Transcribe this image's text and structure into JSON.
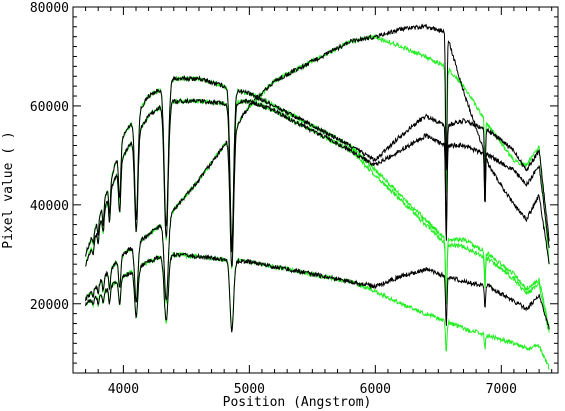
{
  "chart_data": {
    "type": "line",
    "title": "",
    "xlabel": "Position (Angstrom)",
    "ylabel": "Pixel value ( )",
    "xlim": [
      3600,
      7450
    ],
    "ylim": [
      6000,
      80000
    ],
    "x_ticks": [
      4000,
      5000,
      6000,
      7000
    ],
    "y_ticks": [
      20000,
      40000,
      60000,
      80000
    ],
    "x_tick_labels": [
      "4000",
      "5000",
      "6000",
      "7000"
    ],
    "y_tick_labels": [
      "20000",
      "40000",
      "60000",
      "80000"
    ],
    "grid": false,
    "legend": "none",
    "colors": {
      "black": "#000000",
      "green": "#22ee22"
    },
    "absorption_lines": [
      {
        "x": 3760,
        "depth": 0.06,
        "width": 8
      },
      {
        "x": 3800,
        "depth": 0.08,
        "width": 8
      },
      {
        "x": 3840,
        "depth": 0.1,
        "width": 9
      },
      {
        "x": 3890,
        "depth": 0.14,
        "width": 10
      },
      {
        "x": 3970,
        "depth": 0.2,
        "width": 12
      },
      {
        "x": 4102,
        "depth": 0.36,
        "width": 18
      },
      {
        "x": 4340,
        "depth": 0.45,
        "width": 22
      },
      {
        "x": 4861,
        "depth": 0.5,
        "width": 20
      },
      {
        "x": 6563,
        "depth": 0.38,
        "width": 8
      },
      {
        "x": 6870,
        "depth": 0.22,
        "width": 6
      }
    ],
    "series": [
      {
        "color": "black",
        "x": [
          3700,
          3800,
          3900,
          4000,
          4100,
          4200,
          4300,
          4400,
          4600,
          4800,
          5000,
          5200,
          5500,
          5800,
          6000,
          6200,
          6400,
          6560,
          6700,
          6900,
          7100,
          7200,
          7300,
          7380
        ],
        "y": [
          30000,
          37000,
          45000,
          54000,
          58000,
          62000,
          63500,
          65500,
          65500,
          64000,
          62500,
          60000,
          56000,
          52000,
          49000,
          54000,
          58000,
          56000,
          57000,
          55000,
          51000,
          47000,
          51000,
          33000
        ]
      },
      {
        "color": "black",
        "x": [
          3700,
          3800,
          3900,
          4000,
          4100,
          4200,
          4300,
          4400,
          4600,
          4800,
          5000,
          5200,
          5500,
          5800,
          6000,
          6200,
          6400,
          6560,
          6700,
          6900,
          7100,
          7200,
          7300,
          7380
        ],
        "y": [
          28000,
          35000,
          43000,
          50000,
          54000,
          58000,
          60000,
          61000,
          61000,
          60500,
          61000,
          59000,
          55000,
          51000,
          48000,
          51000,
          54000,
          52000,
          52000,
          50000,
          47000,
          44000,
          48000,
          31000
        ]
      },
      {
        "color": "black",
        "x": [
          3700,
          3800,
          3900,
          4000,
          4100,
          4200,
          4300,
          4400,
          4600,
          4800,
          5000,
          5200,
          5500,
          5800,
          6000,
          6200,
          6400,
          6560,
          6700,
          6900,
          7100,
          7200,
          7300,
          7380
        ],
        "y": [
          21000,
          24000,
          27000,
          30000,
          32000,
          34000,
          36000,
          39000,
          45000,
          52000,
          60000,
          65000,
          69000,
          73000,
          74000,
          75500,
          76000,
          75000,
          63000,
          48000,
          40000,
          37000,
          42000,
          28000
        ]
      },
      {
        "color": "black",
        "x": [
          3700,
          3800,
          3900,
          4000,
          4100,
          4200,
          4300,
          4400,
          4600,
          4800,
          5000,
          5200,
          5500,
          5800,
          6000,
          6200,
          6400,
          6560,
          6700,
          6900,
          7100,
          7200,
          7300,
          7380
        ],
        "y": [
          20000,
          21500,
          23500,
          25500,
          27000,
          28500,
          29500,
          30000,
          29500,
          29000,
          28500,
          27500,
          26000,
          24500,
          23500,
          25500,
          27000,
          25500,
          24500,
          23500,
          20500,
          19000,
          21500,
          15000
        ]
      },
      {
        "color": "green",
        "x": [
          3700,
          3800,
          3900,
          4000,
          4100,
          4200,
          4300,
          4400,
          4600,
          4800,
          5000,
          5200,
          5500,
          5800,
          6000,
          6200,
          6400,
          6560,
          6700,
          6900,
          7100,
          7200,
          7300,
          7380
        ],
        "y": [
          30000,
          37000,
          45000,
          54000,
          58000,
          62000,
          63500,
          65500,
          65500,
          64000,
          62500,
          60000,
          56000,
          52000,
          47000,
          42000,
          37000,
          33000,
          33000,
          30000,
          26000,
          23000,
          25000,
          15000
        ]
      },
      {
        "color": "green",
        "x": [
          3700,
          3800,
          3900,
          4000,
          4100,
          4200,
          4300,
          4400,
          4600,
          4800,
          5000,
          5200,
          5500,
          5800,
          6000,
          6200,
          6400,
          6560,
          6700,
          6900,
          7100,
          7200,
          7300,
          7380
        ],
        "y": [
          28000,
          35000,
          43000,
          50000,
          54000,
          58000,
          60000,
          61000,
          61000,
          60500,
          61000,
          59000,
          55000,
          51000,
          46000,
          41000,
          36000,
          32000,
          31500,
          29000,
          25000,
          22000,
          24000,
          14000
        ]
      },
      {
        "color": "green",
        "x": [
          3700,
          3800,
          3900,
          4000,
          4100,
          4200,
          4300,
          4400,
          4600,
          4800,
          5000,
          5200,
          5500,
          5800,
          6000,
          6200,
          6400,
          6560,
          6700,
          6900,
          7100,
          7200,
          7300,
          7380
        ],
        "y": [
          21000,
          24000,
          27000,
          30000,
          32000,
          34000,
          36000,
          39000,
          45000,
          52000,
          60000,
          65000,
          69000,
          73000,
          74000,
          72000,
          70000,
          68000,
          64000,
          56000,
          49000,
          48000,
          52000,
          28000
        ]
      },
      {
        "color": "green",
        "x": [
          3700,
          3800,
          3900,
          4000,
          4100,
          4200,
          4300,
          4400,
          4600,
          4800,
          5000,
          5200,
          5500,
          5800,
          6000,
          6200,
          6400,
          6560,
          6700,
          6900,
          7100,
          7200,
          7300,
          7380
        ],
        "y": [
          20000,
          21500,
          23500,
          25500,
          27000,
          28500,
          29500,
          30000,
          29500,
          29000,
          28500,
          27500,
          26000,
          24500,
          22500,
          20000,
          18000,
          16500,
          15000,
          13500,
          12000,
          11000,
          11500,
          7000
        ]
      }
    ]
  }
}
